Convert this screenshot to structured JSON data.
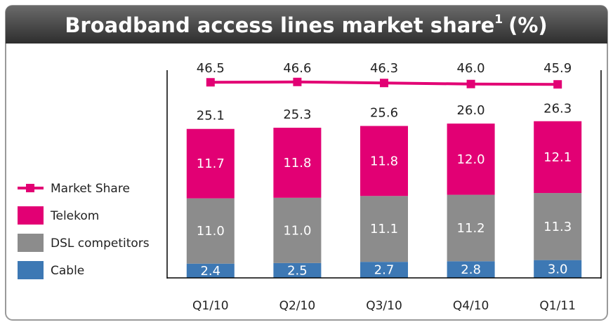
{
  "chart_data": {
    "type": "stacked_bar_line",
    "title": "Broadband access lines market share",
    "title_footnote": "1",
    "title_suffix": "(%)",
    "categories": [
      "Q1/10",
      "Q2/10",
      "Q3/10",
      "Q4/10",
      "Q1/11"
    ],
    "ylim": [
      0,
      35
    ],
    "y2lim": [
      -10,
      50
    ],
    "series": [
      {
        "name": "Cable",
        "color": "#3d78b4",
        "values": [
          2.4,
          2.5,
          2.7,
          2.8,
          3.0
        ],
        "value_labels": [
          "2.4",
          "2.5",
          "2.7",
          "2.8",
          "3.0"
        ]
      },
      {
        "name": "DSL competitors",
        "color": "#8c8c8c",
        "values": [
          11.0,
          11.0,
          11.1,
          11.2,
          11.3
        ],
        "value_labels": [
          "11.0",
          "11.0",
          "11.1",
          "11.2",
          "11.3"
        ]
      },
      {
        "name": "Telekom",
        "color": "#e20074",
        "values": [
          11.7,
          11.8,
          11.8,
          12.0,
          12.1
        ],
        "value_labels": [
          "11.7",
          "11.8",
          "11.8",
          "12.0",
          "12.1"
        ]
      },
      {
        "name": "Market Share",
        "type": "line",
        "axis": "y2",
        "color": "#e20074",
        "values": [
          46.5,
          46.6,
          46.3,
          46.0,
          45.9
        ],
        "value_labels": [
          "46.5",
          "46.6",
          "46.3",
          "46.0",
          "45.9"
        ]
      }
    ],
    "totals": [
      25.1,
      25.3,
      25.6,
      26.0,
      26.3
    ],
    "total_labels": [
      "25.1",
      "25.3",
      "25.6",
      "26.0",
      "26.3"
    ]
  }
}
